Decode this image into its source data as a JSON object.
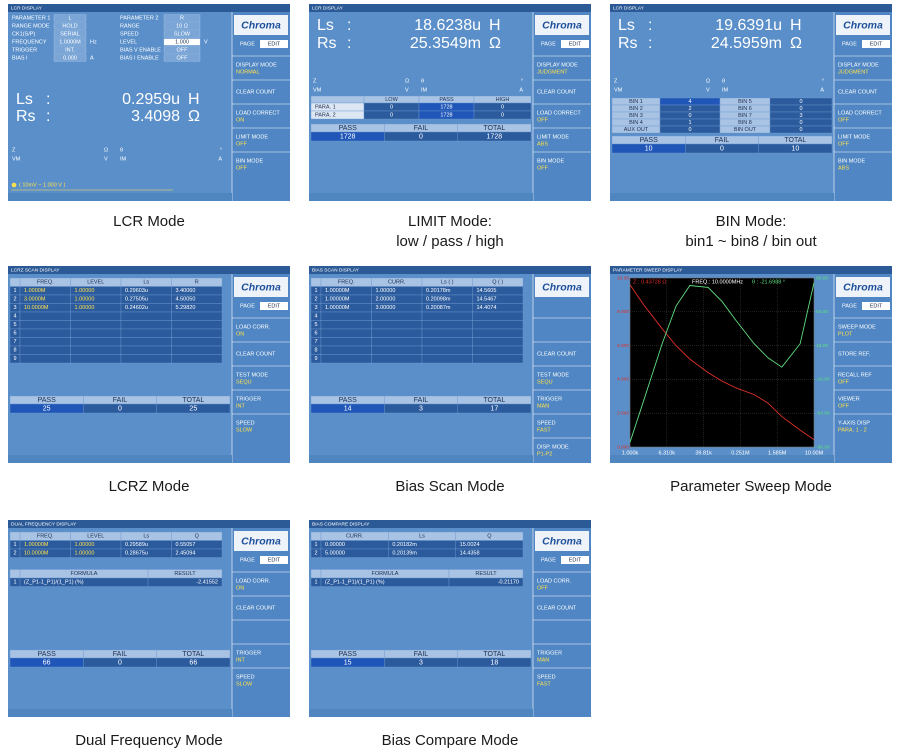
{
  "screens": [
    {
      "title": "LCR DISPLAY",
      "caption": [
        "LCR Mode"
      ],
      "logo": "Chroma",
      "page": "PAGE",
      "edit": "EDIT",
      "sidebar": [
        {
          "label": "DISPLAY MODE",
          "value": "NORMAL"
        },
        {
          "label": "CLEAR COUNT"
        },
        {
          "label": "LOAD CORRECT",
          "value": "ON"
        },
        {
          "label": "LIMIT MODE",
          "value": "OFF"
        },
        {
          "label": "BIN MODE",
          "value": "OFF"
        }
      ],
      "settings_left": [
        {
          "label": "PARAMETER 1",
          "value": "L"
        },
        {
          "label": "RANGE MODE",
          "value": "HOLD"
        },
        {
          "label": "CK1(S/P)",
          "value": "SERIAL"
        },
        {
          "label": "FREQUENCY",
          "value": "1.0000M",
          "unit": "Hz"
        },
        {
          "label": "TRIGGER",
          "value": "INT."
        },
        {
          "label": "BIAS I",
          "value": "0.000",
          "unit": "A"
        }
      ],
      "settings_right": [
        {
          "label": "PARAMETER 2",
          "value": "R"
        },
        {
          "label": "RANGE",
          "value": "10 Ω"
        },
        {
          "label": "SPEED",
          "value": "SLOW"
        },
        {
          "label": "LEVEL",
          "value": "1.000",
          "unit": "V",
          "selected": true
        },
        {
          "label": "BIAS V ENABLE",
          "value": "OFF"
        },
        {
          "label": "BIAS I ENABLE",
          "value": "OFF"
        }
      ],
      "readout": [
        {
          "name": "Ls",
          "sep": ":",
          "value": "0.2959u",
          "unit": "H"
        },
        {
          "name": "Rs",
          "sep": ":",
          "value": "3.4098",
          "unit": "Ω"
        }
      ],
      "monitor": [
        [
          "Z",
          "Ω",
          "θ",
          "°"
        ],
        [
          "VM",
          "V",
          "IM",
          "A"
        ]
      ],
      "message": "( 10mV ~ 1.000 V )"
    },
    {
      "title": "LCR DISPLAY",
      "caption": [
        "LIMIT Mode:",
        "low / pass / high"
      ],
      "logo": "Chroma",
      "page": "PAGE",
      "edit": "EDIT",
      "sidebar": [
        {
          "label": "DISPLAY MODE",
          "value": "JUDGMENT"
        },
        {
          "label": "CLEAR COUNT"
        },
        {
          "label": "LOAD CORRECT",
          "value": "OFF"
        },
        {
          "label": "LIMIT MODE",
          "value": "ABS"
        },
        {
          "label": "BIN MODE",
          "value": "OFF"
        }
      ],
      "readout": [
        {
          "name": "Ls",
          "sep": ":",
          "value": "18.6238u",
          "unit": "H"
        },
        {
          "name": "Rs",
          "sep": ":",
          "value": "25.3549m",
          "unit": "Ω"
        }
      ],
      "monitor": [
        [
          "Z",
          "Ω",
          "θ",
          "°"
        ],
        [
          "VM",
          "V",
          "IM",
          "A"
        ]
      ],
      "limit": {
        "header": [
          "LOW",
          "PASS",
          "HIGH"
        ],
        "rows": [
          {
            "name": "PARA. 1",
            "cells": [
              0,
              1728,
              0
            ]
          },
          {
            "name": "PARA. 2",
            "cells": [
              0,
              1728,
              0
            ]
          }
        ]
      },
      "counters": {
        "header": [
          "PASS",
          "FAIL",
          "TOTAL"
        ],
        "values": [
          1728,
          0,
          1728
        ]
      }
    },
    {
      "title": "LCR DISPLAY",
      "caption": [
        "BIN Mode:",
        "bin1 ~ bin8 / bin out"
      ],
      "logo": "Chroma",
      "page": "PAGE",
      "edit": "EDIT",
      "sidebar": [
        {
          "label": "DISPLAY MODE",
          "value": "JUDGMENT"
        },
        {
          "label": "CLEAR COUNT"
        },
        {
          "label": "LOAD CORRECT",
          "value": "OFF"
        },
        {
          "label": "LIMIT MODE",
          "value": "OFF"
        },
        {
          "label": "BIN MODE",
          "value": "ABS"
        }
      ],
      "readout": [
        {
          "name": "Ls",
          "sep": ":",
          "value": "19.6391u",
          "unit": "H"
        },
        {
          "name": "Rs",
          "sep": ":",
          "value": "24.5959m",
          "unit": "Ω"
        }
      ],
      "monitor": [
        [
          "Z",
          "Ω",
          "θ",
          "°"
        ],
        [
          "VM",
          "V",
          "IM",
          "A"
        ]
      ],
      "bins": [
        [
          "BIN 1",
          4,
          "BIN 5",
          0
        ],
        [
          "BIN 2",
          2,
          "BIN 6",
          0
        ],
        [
          "BIN 3",
          0,
          "BIN 7",
          3
        ],
        [
          "BIN 4",
          1,
          "BIN 8",
          0
        ],
        [
          "AUX OUT",
          0,
          "BIN OUT",
          0
        ]
      ],
      "counters": {
        "header": [
          "PASS",
          "FAIL",
          "TOTAL"
        ],
        "values": [
          10,
          0,
          10
        ]
      }
    },
    {
      "title": "LCRZ SCAN DISPLAY",
      "caption": [
        "LCRZ Mode"
      ],
      "logo": "Chroma",
      "page": "PAGE",
      "edit": "EDIT",
      "sidebar": [
        {
          "label": "LOAD CORR.",
          "value": "ON"
        },
        {
          "label": "CLEAR COUNT"
        },
        {
          "label": "TEST MODE",
          "value": "SEQU"
        },
        {
          "label": "TRIGGER",
          "value": "INT"
        },
        {
          "label": "SPEED",
          "value": "SLOW"
        }
      ],
      "list": {
        "header": [
          "FREQ.",
          "LEVEL",
          "Ls",
          "R"
        ],
        "colors": [
          "#ffe14d",
          "#ffe14d",
          "#ffffff",
          "#ffffff"
        ],
        "rows": [
          [
            "1",
            "1.0000M",
            "1.00000",
            "0.29603u",
            "3.40060"
          ],
          [
            "2",
            "3.0000M",
            "1.00000",
            "0.27505u",
            "4.50050"
          ],
          [
            "3",
            "10.0000M",
            "1.00000",
            "0.24602u",
            "5.29820"
          ],
          [
            "4"
          ],
          [
            "5"
          ],
          [
            "6"
          ],
          [
            "7"
          ],
          [
            "8"
          ],
          [
            "9"
          ]
        ]
      },
      "counters": {
        "header": [
          "PASS",
          "FAIL",
          "TOTAL"
        ],
        "values": [
          25,
          0,
          25
        ]
      }
    },
    {
      "title": "BIAS SCAN DISPLAY",
      "caption": [
        "Bias Scan Mode"
      ],
      "logo": "Chroma",
      "sidebar": [
        null,
        {
          "label": "CLEAR COUNT"
        },
        {
          "label": "TEST MODE",
          "value": "SEQU"
        },
        {
          "label": "TRIGGER",
          "value": "MAN"
        },
        {
          "label": "SPEED",
          "value": "FAST"
        },
        {
          "label": "DISP. MODE",
          "value": "P1-P2"
        }
      ],
      "list": {
        "header": [
          "FREQ.",
          "CURR.",
          "Ls ( )",
          "Q ( )"
        ],
        "colors": [
          "#ffffff",
          "#ffffff",
          "#ffffff",
          "#ffffff"
        ],
        "rows": [
          [
            "1",
            "1.00000M",
            "1.00000",
            "0.20178m",
            "14.5605"
          ],
          [
            "2",
            "1.00000M",
            "2.00000",
            "0.20098m",
            "14.5467"
          ],
          [
            "3",
            "1.00000M",
            "3.00000",
            "0.20087m",
            "14.4074"
          ],
          [
            "4"
          ],
          [
            "5"
          ],
          [
            "6"
          ],
          [
            "7"
          ],
          [
            "8"
          ],
          [
            "9"
          ]
        ]
      },
      "counters": {
        "header": [
          "PASS",
          "FAIL",
          "TOTAL"
        ],
        "values": [
          14,
          3,
          17
        ]
      }
    },
    {
      "title": "PARAMETER SWEEP DISPLAY",
      "caption": [
        "Parameter Sweep Mode"
      ],
      "logo": "Chroma",
      "page": "PAGE",
      "edit": "EDIT",
      "sidebar": [
        {
          "label": "SWEEP MODE",
          "value": "PLOT"
        },
        {
          "label": "STORE REF."
        },
        {
          "label": "RECALL REF",
          "value": "OFF"
        },
        {
          "label": "VIEWER",
          "value": "OFF"
        },
        {
          "label": "Y-AXIS DISP",
          "value": "PARA. 1 - 2"
        }
      ],
      "plot": {
        "type": "line",
        "readouts": [
          "Z : 0.43728 Ω",
          "FREQ.: 10.0000MHz",
          "θ : -21.6988 °"
        ],
        "log_x": true,
        "grid": true,
        "x": [
          1000,
          2000,
          5000,
          10000,
          20000,
          50000,
          100000,
          200000,
          500000,
          1000000,
          2000000,
          5000000,
          10000000
        ],
        "xlim": [
          1000,
          10000000
        ],
        "xticks": [
          {
            "value": 1000,
            "label": "1.000k"
          },
          {
            "value": 6310,
            "label": "6.310k"
          },
          {
            "value": 39810,
            "label": "39.81k"
          },
          {
            "value": 251000,
            "label": "0.251M"
          },
          {
            "value": 1585000,
            "label": "1.585M"
          },
          {
            "value": 10000000,
            "label": "10.00M"
          }
        ],
        "ylim": [
          0,
          10
        ],
        "yticks": [
          {
            "value": 0,
            "label": "0.000"
          },
          {
            "value": 2,
            "label": "2.000"
          },
          {
            "value": 4,
            "label": "4.000"
          },
          {
            "value": 6,
            "label": "6.000"
          },
          {
            "value": 8,
            "label": "8.000"
          },
          {
            "value": 10,
            "label": "10.00"
          }
        ],
        "y2lim": [
          -90,
          90
        ],
        "y2ticks": [
          {
            "value": -90,
            "label": "-90.00"
          },
          {
            "value": -54,
            "label": "-54.00"
          },
          {
            "value": -18,
            "label": "-18.00"
          },
          {
            "value": 18,
            "label": "18.00"
          },
          {
            "value": 54,
            "label": "54.00"
          },
          {
            "value": 90,
            "label": "90.00"
          }
        ],
        "series": [
          {
            "color": "#e0302a",
            "values": [
              9.6,
              8.4,
              7.0,
              6.0,
              5.2,
              4.4,
              3.9,
              3.5,
              3.1,
              2.6,
              1.8,
              1.0,
              0.437
            ]
          },
          {
            "color": "#5fe07f",
            "axis": "y2",
            "values": [
              -85,
              -40,
              20,
              60,
              82,
              80,
              65,
              45,
              20,
              5,
              -5,
              20,
              85
            ]
          }
        ]
      }
    },
    {
      "title": "DUAL FREQUENCY DISPLAY",
      "caption": [
        "Dual Frequency Mode"
      ],
      "logo": "Chroma",
      "page": "PAGE",
      "edit": "EDIT",
      "sidebar": [
        {
          "label": "LOAD CORR.",
          "value": "ON"
        },
        {
          "label": "CLEAR COUNT"
        },
        null,
        {
          "label": "TRIGGER",
          "value": "INT"
        },
        {
          "label": "SPEED",
          "value": "SLOW"
        }
      ],
      "list": {
        "header": [
          "FREQ.",
          "LEVEL",
          "Ls",
          "Q"
        ],
        "colors": [
          "#ffe14d",
          "#ffe14d",
          "#ffffff",
          "#ffffff"
        ],
        "rows": [
          [
            "1",
            "1.00000M",
            "1.00000",
            "0.29589u",
            "0.55057"
          ],
          [
            "2",
            "10.0000M",
            "1.00000",
            "0.28675u",
            "2.45094"
          ]
        ]
      },
      "formula": {
        "header": [
          "FORMULA",
          "RESULT"
        ],
        "rows": [
          [
            "1",
            "(Z_P1-1_P1)/(1_P1) (%)",
            "-2.41552"
          ]
        ]
      },
      "counters": {
        "header": [
          "PASS",
          "FAIL",
          "TOTAL"
        ],
        "values": [
          66,
          0,
          66
        ]
      }
    },
    {
      "title": "BIAS COMPARE DISPLAY",
      "caption": [
        "Bias Compare Mode"
      ],
      "logo": "Chroma",
      "page": "PAGE",
      "edit": "EDIT",
      "sidebar": [
        {
          "label": "LOAD CORR.",
          "value": "OFF"
        },
        {
          "label": "CLEAR COUNT"
        },
        null,
        {
          "label": "TRIGGER",
          "value": "MAN"
        },
        {
          "label": "SPEED",
          "value": "FAST"
        }
      ],
      "list": {
        "header": [
          "CURR.",
          "Ls",
          "Q"
        ],
        "colors": [
          "#ffffff",
          "#ffffff",
          "#ffffff"
        ],
        "rows": [
          [
            "1",
            "0.00000",
            "0.20182m",
            "15.0024"
          ],
          [
            "2",
            "5.00000",
            "0.20139m",
            "14.4358"
          ]
        ]
      },
      "formula": {
        "header": [
          "FORMULA",
          "RESULT"
        ],
        "rows": [
          [
            "1",
            "(Z_P1-1_P1)/(1_P1) (%)",
            "-0.21170"
          ]
        ]
      },
      "counters": {
        "header": [
          "PASS",
          "FAIL",
          "TOTAL"
        ],
        "values": [
          15,
          3,
          18
        ]
      }
    }
  ]
}
